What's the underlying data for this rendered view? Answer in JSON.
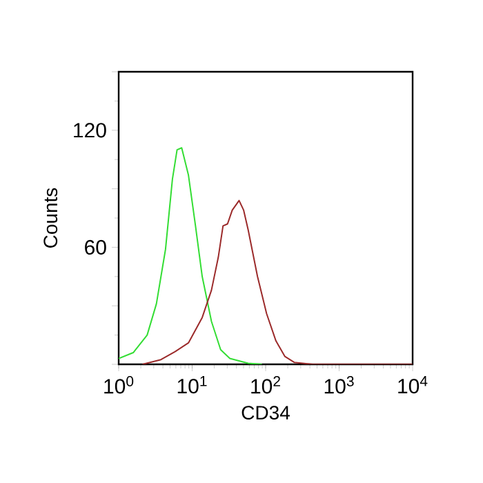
{
  "chart_data": {
    "type": "line",
    "xlabel": "CD34",
    "ylabel": "Counts",
    "log": "x",
    "grid": false,
    "marker": "none",
    "line_style": "solid",
    "xlim": [
      1,
      10000
    ],
    "ylim": [
      0,
      150
    ],
    "xticks": [
      {
        "value": 1,
        "label": "10$^{0}$"
      },
      {
        "value": 10,
        "label": "10$^{1}$"
      },
      {
        "value": 100,
        "label": "10$^{2}$"
      },
      {
        "value": 1000,
        "label": "10$^{3}$"
      },
      {
        "value": 10000,
        "label": "10$^{4}$"
      }
    ],
    "yticks": [
      {
        "value": 0,
        "label": null
      },
      {
        "value": 30,
        "label": null
      },
      60,
      {
        "value": 90,
        "label": null
      },
      120,
      {
        "value": 150,
        "label": null
      }
    ],
    "series": [
      {
        "color": "#33dd33",
        "x": [
          1.0,
          1.58,
          2.44,
          3.26,
          4.34,
          5.39,
          6.23,
          7.2,
          8.9,
          11.1,
          13.7,
          18.3,
          24.4,
          32.6,
          57.8,
          89
        ],
        "values": [
          3,
          6,
          15,
          31,
          59,
          95,
          110,
          111,
          97,
          71,
          45,
          22,
          7.5,
          3,
          0.5,
          0
        ]
      },
      {
        "color": "#9b2a2a",
        "x": [
          2.11,
          3.76,
          5.8,
          8.9,
          13.7,
          18.3,
          22.7,
          26.3,
          30.3,
          35.1,
          43.5,
          50.2,
          57.8,
          77.5,
          103,
          138,
          183,
          245,
          436,
          10000
        ],
        "values": [
          0,
          2.4,
          6.4,
          11,
          24,
          38,
          55,
          71,
          72,
          79,
          84,
          79,
          69,
          45,
          26,
          12,
          4,
          1,
          0,
          0
        ]
      }
    ]
  }
}
